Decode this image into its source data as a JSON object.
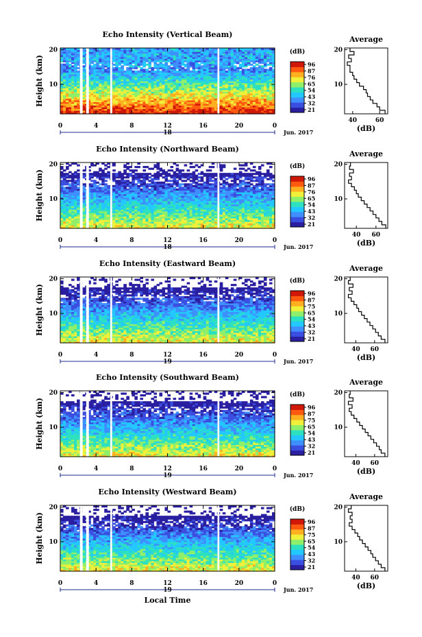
{
  "colors": {
    "scale": [
      "#2a1fa0",
      "#3a4fe0",
      "#3f8fff",
      "#22c8ff",
      "#2de0c0",
      "#8ef06a",
      "#f0f03a",
      "#ffb020",
      "#ff5a10",
      "#d01808"
    ],
    "gap": "#ffffff",
    "line": "#000000"
  },
  "colorbar": {
    "unit": "(dB)",
    "ticks_default": [
      "96",
      "87",
      "75",
      "65",
      "54",
      "43",
      "32",
      "21"
    ],
    "ticks_alt": [
      "96",
      "87",
      "76",
      "65",
      "54",
      "43",
      "32",
      "21"
    ]
  },
  "xaxis": {
    "ticks": [
      "0",
      "4",
      "8",
      "12",
      "16",
      "20",
      "0"
    ],
    "date_label": "Jun. 2017",
    "xlabel": "Local Time"
  },
  "chart_data": [
    {
      "type": "heatmap",
      "title": "Echo Intensity (Vertical Beam)",
      "ylabel": "Height (km)",
      "y_ticks": [
        "20",
        "10"
      ],
      "day_label": "18",
      "colorbar_ticks": [
        "96",
        "87",
        "76",
        "65",
        "54",
        "43",
        "32",
        "21"
      ],
      "x_range": [
        0,
        24
      ],
      "y_range": [
        1.5,
        20.5
      ],
      "z_range_db": [
        21,
        96
      ],
      "data_gaps_hours": [
        [
          2.2,
          2.5
        ],
        [
          2.9,
          3.2
        ],
        [
          5.6,
          5.8
        ],
        [
          17.6,
          17.8
        ]
      ],
      "echo_top_km": 20,
      "profile": {
        "title": "Average",
        "xlabel": "(dB)",
        "x_ticks": [
          "40",
          "60"
        ],
        "y_ticks": [
          "20",
          "10"
        ],
        "x_range": [
          34,
          66
        ],
        "height_km": [
          20,
          19,
          18,
          17,
          16,
          15,
          14,
          13,
          12,
          11,
          10,
          9,
          8,
          7,
          6,
          5,
          4,
          3,
          2
        ],
        "mean_db": [
          38,
          41,
          37,
          39,
          36,
          38,
          38,
          40,
          41,
          43,
          45,
          48,
          50,
          51,
          53,
          55,
          58,
          60,
          64
        ]
      }
    },
    {
      "type": "heatmap",
      "title": "Echo Intensity (Northward Beam)",
      "ylabel": "Height (km)",
      "y_ticks": [
        "20",
        "10"
      ],
      "day_label": "18",
      "colorbar_ticks": [
        "96",
        "87",
        "76",
        "65",
        "54",
        "43",
        "32",
        "21"
      ],
      "x_range": [
        0,
        24
      ],
      "y_range": [
        1.5,
        20.5
      ],
      "z_range_db": [
        21,
        96
      ],
      "data_gaps_hours": [
        [
          2.2,
          2.5
        ],
        [
          2.9,
          3.2
        ],
        [
          5.6,
          5.8
        ],
        [
          17.6,
          17.8
        ]
      ],
      "echo_top_km": 17.5,
      "profile": {
        "title": "Average",
        "xlabel": "(dB)",
        "x_ticks": [
          "40",
          "60"
        ],
        "y_ticks": [
          "20",
          "10"
        ],
        "x_range": [
          28,
          72
        ],
        "height_km": [
          20,
          19,
          18,
          17,
          16,
          15,
          14,
          13,
          12,
          11,
          10,
          9,
          8,
          7,
          6,
          5,
          4,
          3,
          2
        ],
        "mean_db": [
          34,
          33,
          37,
          33,
          35,
          32,
          35,
          38,
          40,
          42,
          45,
          48,
          51,
          54,
          57,
          60,
          63,
          66,
          70
        ]
      }
    },
    {
      "type": "heatmap",
      "title": "Echo Intensity (Eastward Beam)",
      "ylabel": "Height (km)",
      "y_ticks": [
        "20",
        "10"
      ],
      "day_label": "19",
      "colorbar_ticks": [
        "96",
        "87",
        "75",
        "65",
        "54",
        "43",
        "32",
        "21"
      ],
      "x_range": [
        0,
        24
      ],
      "y_range": [
        1.5,
        20.5
      ],
      "z_range_db": [
        21,
        96
      ],
      "data_gaps_hours": [
        [
          2.2,
          2.5
        ],
        [
          2.9,
          3.2
        ],
        [
          5.6,
          5.8
        ],
        [
          17.6,
          17.8
        ]
      ],
      "echo_top_km": 17.5,
      "profile": {
        "title": "Average",
        "xlabel": "(dB)",
        "x_ticks": [
          "40",
          "60"
        ],
        "y_ticks": [
          "20",
          "10"
        ],
        "x_range": [
          28,
          74
        ],
        "height_km": [
          20,
          19,
          18,
          17,
          16,
          15,
          14,
          13,
          12,
          11,
          10,
          9,
          8,
          7,
          6,
          5,
          4,
          3,
          2
        ],
        "mean_db": [
          34,
          32,
          37,
          33,
          36,
          32,
          35,
          38,
          41,
          43,
          46,
          49,
          52,
          55,
          58,
          61,
          64,
          67,
          71
        ]
      }
    },
    {
      "type": "heatmap",
      "title": "Echo Intensity (Southward Beam)",
      "ylabel": "Height (km)",
      "y_ticks": [
        "20",
        "10"
      ],
      "day_label": "19",
      "colorbar_ticks": [
        "96",
        "87",
        "75",
        "65",
        "54",
        "43",
        "32",
        "21"
      ],
      "x_range": [
        0,
        24
      ],
      "y_range": [
        1.5,
        20.5
      ],
      "z_range_db": [
        21,
        96
      ],
      "data_gaps_hours": [
        [
          2.2,
          2.5
        ],
        [
          2.9,
          3.2
        ],
        [
          5.6,
          5.8
        ],
        [
          17.6,
          17.8
        ]
      ],
      "echo_top_km": 17.5,
      "profile": {
        "title": "Average",
        "xlabel": "(dB)",
        "x_ticks": [
          "40",
          "60"
        ],
        "y_ticks": [
          "20",
          "10"
        ],
        "x_range": [
          28,
          74
        ],
        "height_km": [
          20,
          19,
          18,
          17,
          16,
          15,
          14,
          13,
          12,
          11,
          10,
          9,
          8,
          7,
          6,
          5,
          4,
          3,
          2
        ],
        "mean_db": [
          34,
          33,
          37,
          32,
          36,
          33,
          35,
          38,
          41,
          44,
          47,
          50,
          53,
          56,
          59,
          62,
          65,
          67,
          71
        ]
      }
    },
    {
      "type": "heatmap",
      "title": "Echo Intensity (Westward Beam)",
      "ylabel": "Height (km)",
      "y_ticks": [
        "20",
        "10"
      ],
      "day_label": "19",
      "colorbar_ticks": [
        "96",
        "87",
        "75",
        "65",
        "54",
        "43",
        "32",
        "21"
      ],
      "x_range": [
        0,
        24
      ],
      "y_range": [
        1.5,
        20.5
      ],
      "z_range_db": [
        21,
        96
      ],
      "data_gaps_hours": [
        [
          2.2,
          2.5
        ],
        [
          2.9,
          3.2
        ],
        [
          5.6,
          5.8
        ],
        [
          17.6,
          17.8
        ]
      ],
      "echo_top_km": 17.5,
      "profile": {
        "title": "Average",
        "xlabel": "(dB)",
        "x_ticks": [
          "40",
          "60"
        ],
        "y_ticks": [
          "20",
          "10"
        ],
        "x_range": [
          28,
          74
        ],
        "height_km": [
          20,
          19,
          18,
          17,
          16,
          15,
          14,
          13,
          12,
          11,
          10,
          9,
          8,
          7,
          6,
          5,
          4,
          3,
          2
        ],
        "mean_db": [
          35,
          32,
          36,
          34,
          36,
          33,
          36,
          39,
          42,
          44,
          47,
          50,
          53,
          56,
          58,
          61,
          64,
          67,
          71
        ]
      }
    }
  ]
}
